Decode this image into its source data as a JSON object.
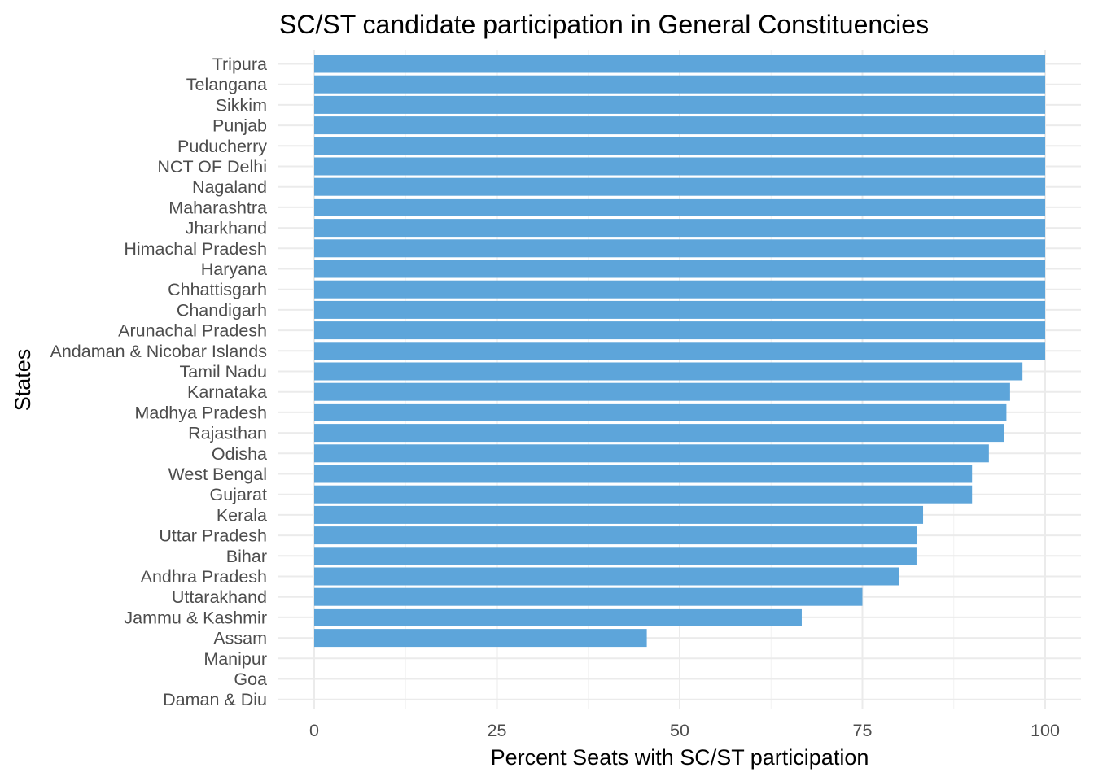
{
  "chart_data": {
    "type": "bar",
    "orientation": "horizontal",
    "title": "SC/ST candidate participation in General Constituencies",
    "xlabel": "Percent Seats with SC/ST participation",
    "ylabel": "States",
    "xlim": [
      0,
      100
    ],
    "xticks": [
      0,
      25,
      50,
      75,
      100
    ],
    "grid": true,
    "bar_color": "#5DA5DA",
    "categories": [
      "Tripura",
      "Telangana",
      "Sikkim",
      "Punjab",
      "Puducherry",
      "NCT OF Delhi",
      "Nagaland",
      "Maharashtra",
      "Jharkhand",
      "Himachal Pradesh",
      "Haryana",
      "Chhattisgarh",
      "Chandigarh",
      "Arunachal Pradesh",
      "Andaman & Nicobar Islands",
      "Tamil Nadu",
      "Karnataka",
      "Madhya Pradesh",
      "Rajasthan",
      "Odisha",
      "West Bengal",
      "Gujarat",
      "Kerala",
      "Uttar Pradesh",
      "Bihar",
      "Andhra Pradesh",
      "Uttarakhand",
      "Jammu & Kashmir",
      "Assam",
      "Manipur",
      "Goa",
      "Daman & Diu"
    ],
    "values": [
      100,
      100,
      100,
      100,
      100,
      100,
      100,
      100,
      100,
      100,
      100,
      100,
      100,
      100,
      100,
      96.9,
      95.2,
      94.7,
      94.4,
      92.3,
      90,
      90,
      83.3,
      82.5,
      82.4,
      80,
      75,
      66.7,
      45.5,
      0,
      0,
      0
    ]
  }
}
